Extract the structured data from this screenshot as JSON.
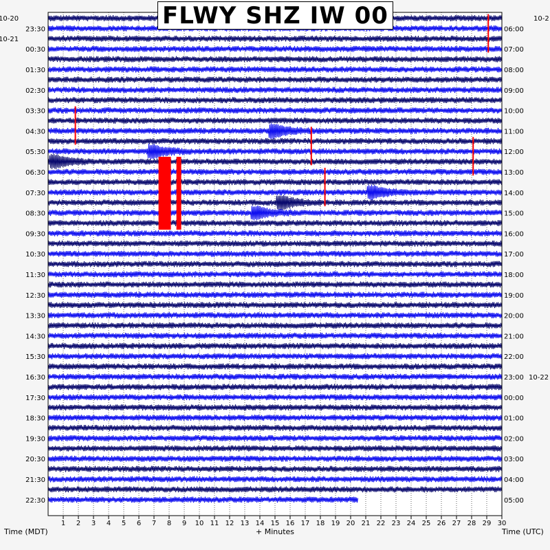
{
  "chart_data": {
    "type": "heatmap",
    "subtype": "helicorder",
    "title": "FLWY SHZ IW 00",
    "xlabel": "+ Minutes",
    "left_axis_label": "Time (MDT)",
    "right_axis_label": "Time (UTC)",
    "x_ticks": [
      "1",
      "2",
      "3",
      "4",
      "5",
      "6",
      "7",
      "8",
      "9",
      "10",
      "11",
      "12",
      "13",
      "14",
      "15",
      "16",
      "17",
      "18",
      "19",
      "20",
      "21",
      "22",
      "23",
      "24",
      "25",
      "26",
      "27",
      "28",
      "29",
      "30"
    ],
    "xlim": [
      0,
      30
    ],
    "rows": 48,
    "row_minutes": 30,
    "last_row_end_minute": 20.5,
    "left_times": [
      "23:30",
      "00:30",
      "01:30",
      "02:30",
      "03:30",
      "04:30",
      "05:30",
      "06:30",
      "07:30",
      "08:30",
      "09:30",
      "10:30",
      "11:30",
      "12:30",
      "13:30",
      "14:30",
      "15:30",
      "16:30",
      "17:30",
      "18:30",
      "19:30",
      "20:30",
      "21:30",
      "22:30"
    ],
    "right_times": [
      "06:00",
      "07:00",
      "08:00",
      "09:00",
      "10:00",
      "11:00",
      "12:00",
      "13:00",
      "14:00",
      "15:00",
      "16:00",
      "17:00",
      "18:00",
      "19:00",
      "20:00",
      "21:00",
      "22:00",
      "23:00",
      "00:00",
      "01:00",
      "02:00",
      "03:00",
      "04:00",
      "05:00"
    ],
    "left_dates": [
      "10-20",
      "10-21"
    ],
    "right_dates": [
      "10-2",
      "10-22"
    ],
    "trace_colors": [
      "#0a0a6e",
      "#1010f0"
    ],
    "clip_color": "#ff0000",
    "events": [
      {
        "row": 0,
        "minute": 29.1,
        "note": "clipped spike"
      },
      {
        "row": 9,
        "minute": 1.8,
        "note": "clipped spike"
      },
      {
        "row": 11,
        "minute": 15.0,
        "note": "burst"
      },
      {
        "row": 11,
        "minute": 17.4,
        "note": "clipped spike"
      },
      {
        "row": 12,
        "minute": 28.1,
        "note": "clipped spike"
      },
      {
        "row": 13,
        "minute": 7.0,
        "note": "burst"
      },
      {
        "row": 14,
        "minute": 0.5,
        "note": "burst"
      },
      {
        "row": 14,
        "minute": 7.3,
        "note": "clipped block"
      },
      {
        "row": 15,
        "minute": 18.3,
        "note": "clipped burst"
      },
      {
        "row": 17,
        "minute": 21.5,
        "note": "burst"
      },
      {
        "row": 18,
        "minute": 15.5,
        "note": "burst"
      },
      {
        "row": 19,
        "minute": 13.8,
        "note": "burst"
      }
    ]
  }
}
